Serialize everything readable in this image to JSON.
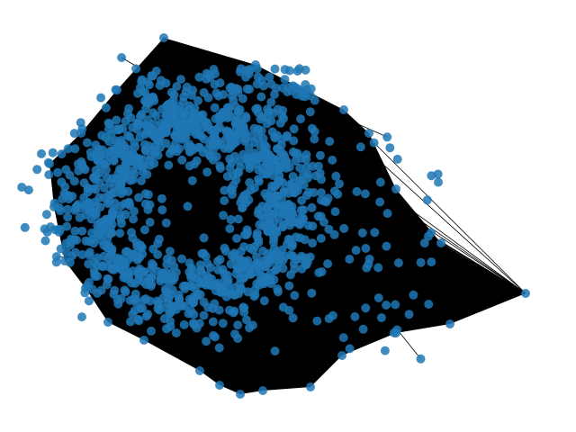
{
  "graph": {
    "type": "network",
    "layout": "spring",
    "title": "",
    "node_color": "#1f77b4",
    "node_alpha": 0.85,
    "edge_color": "#000000",
    "node_count_estimate": 1500,
    "nodes_visible_labels": false
  }
}
